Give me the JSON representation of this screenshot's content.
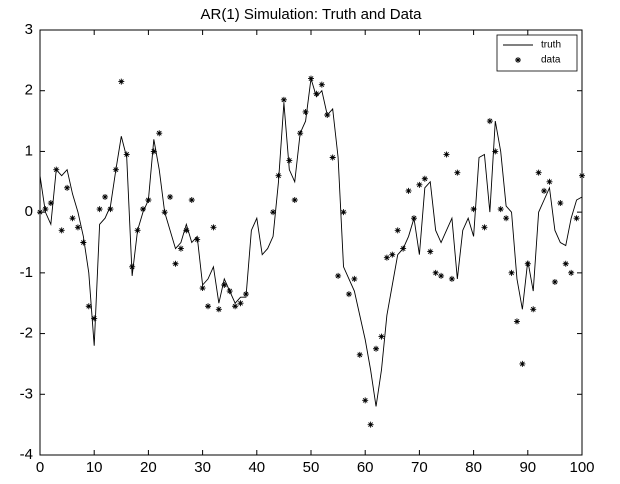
{
  "chart_data": {
    "type": "line",
    "title": "AR(1) Simulation: Truth and Data",
    "xlim": [
      0,
      100
    ],
    "xticks": [
      0,
      10,
      20,
      30,
      40,
      50,
      60,
      70,
      80,
      90,
      100
    ],
    "ylim": [
      -4,
      3
    ],
    "yticks": [
      -4,
      -3,
      -2,
      -1,
      0,
      1,
      2,
      3
    ],
    "legend": "upper right",
    "series": [
      {
        "name": "truth",
        "color": "#000000",
        "style": "line",
        "x": [
          0,
          1,
          2,
          3,
          4,
          5,
          6,
          7,
          8,
          9,
          10,
          11,
          12,
          13,
          14,
          15,
          16,
          17,
          18,
          19,
          20,
          21,
          22,
          23,
          24,
          25,
          26,
          27,
          28,
          29,
          30,
          31,
          32,
          33,
          34,
          35,
          36,
          37,
          38,
          39,
          40,
          41,
          42,
          43,
          44,
          45,
          46,
          47,
          48,
          49,
          50,
          51,
          52,
          53,
          54,
          55,
          56,
          57,
          58,
          59,
          60,
          61,
          62,
          63,
          64,
          65,
          66,
          67,
          68,
          69,
          70,
          71,
          72,
          73,
          74,
          75,
          76,
          77,
          78,
          79,
          80,
          81,
          82,
          83,
          84,
          85,
          86,
          87,
          88,
          89,
          90,
          91,
          92,
          93,
          94,
          95,
          96,
          97,
          98,
          99,
          100
        ],
        "values": [
          0.6,
          0.0,
          -0.2,
          0.7,
          0.6,
          0.7,
          0.3,
          0.0,
          -0.4,
          -1.0,
          -2.2,
          -0.2,
          -0.1,
          0.1,
          0.7,
          1.25,
          0.9,
          -1.05,
          -0.3,
          0.0,
          0.2,
          1.2,
          0.7,
          0.0,
          -0.3,
          -0.6,
          -0.5,
          -0.2,
          -0.5,
          -0.4,
          -1.2,
          -1.1,
          -0.9,
          -1.5,
          -1.1,
          -1.3,
          -1.5,
          -1.4,
          -1.4,
          -0.3,
          -0.1,
          -0.7,
          -0.6,
          -0.4,
          0.5,
          1.8,
          0.7,
          0.5,
          1.3,
          1.5,
          2.2,
          1.9,
          2.0,
          1.6,
          1.7,
          0.9,
          -0.9,
          -1.1,
          -1.3,
          -1.7,
          -2.1,
          -2.6,
          -3.2,
          -2.6,
          -1.7,
          -1.2,
          -0.7,
          -0.6,
          -0.4,
          -0.1,
          -0.7,
          0.4,
          0.5,
          -0.3,
          -0.5,
          -0.3,
          -0.1,
          -1.1,
          -0.3,
          -0.1,
          -0.4,
          0.9,
          0.95,
          0.0,
          1.5,
          1.0,
          0.1,
          0.0,
          -1.1,
          -1.6,
          -0.8,
          -1.3,
          0.0,
          0.2,
          0.4,
          -0.3,
          -0.5,
          -0.55,
          -0.1,
          0.2,
          0.25
        ]
      },
      {
        "name": "data",
        "color": "#000000",
        "style": "marker",
        "x": [
          0,
          1,
          2,
          3,
          4,
          5,
          6,
          7,
          8,
          9,
          10,
          11,
          12,
          13,
          14,
          15,
          16,
          17,
          18,
          19,
          20,
          21,
          22,
          23,
          24,
          25,
          26,
          27,
          28,
          29,
          30,
          31,
          32,
          33,
          34,
          35,
          36,
          37,
          38,
          43,
          44,
          45,
          46,
          47,
          48,
          49,
          50,
          51,
          52,
          53,
          54,
          55,
          56,
          57,
          58,
          59,
          60,
          61,
          62,
          63,
          64,
          65,
          66,
          67,
          68,
          69,
          70,
          71,
          72,
          73,
          74,
          75,
          76,
          77,
          80,
          82,
          83,
          84,
          85,
          86,
          87,
          88,
          89,
          90,
          91,
          92,
          93,
          94,
          95,
          96,
          97,
          98,
          99,
          100
        ],
        "values": [
          0.0,
          0.05,
          0.15,
          0.7,
          -0.3,
          0.4,
          -0.1,
          -0.25,
          -0.5,
          -1.55,
          -1.75,
          0.05,
          0.25,
          0.05,
          0.7,
          2.15,
          0.95,
          -0.9,
          -0.3,
          0.05,
          0.2,
          1.0,
          1.3,
          0.0,
          0.25,
          -0.85,
          -0.6,
          -0.3,
          0.2,
          -0.45,
          -1.25,
          -1.55,
          -0.25,
          -1.6,
          -1.2,
          -1.3,
          -1.55,
          -1.5,
          -1.35,
          0.0,
          0.6,
          1.85,
          0.85,
          0.2,
          1.3,
          1.65,
          2.2,
          1.95,
          2.1,
          1.6,
          0.9,
          -1.05,
          0.0,
          -1.35,
          -1.1,
          -2.35,
          -3.1,
          -3.5,
          -2.25,
          -2.05,
          -0.75,
          -0.7,
          -0.3,
          -0.6,
          0.35,
          -0.1,
          0.45,
          0.55,
          -0.65,
          -1.0,
          -1.05,
          0.95,
          -1.1,
          0.65,
          0.05,
          -0.25,
          1.5,
          1.0,
          0.05,
          -0.1,
          -1.0,
          -1.8,
          -2.5,
          -0.85,
          -1.6,
          0.65,
          0.35,
          0.5,
          -1.15,
          0.15,
          -0.85,
          -1.0,
          -0.1,
          0.6
        ]
      }
    ]
  }
}
